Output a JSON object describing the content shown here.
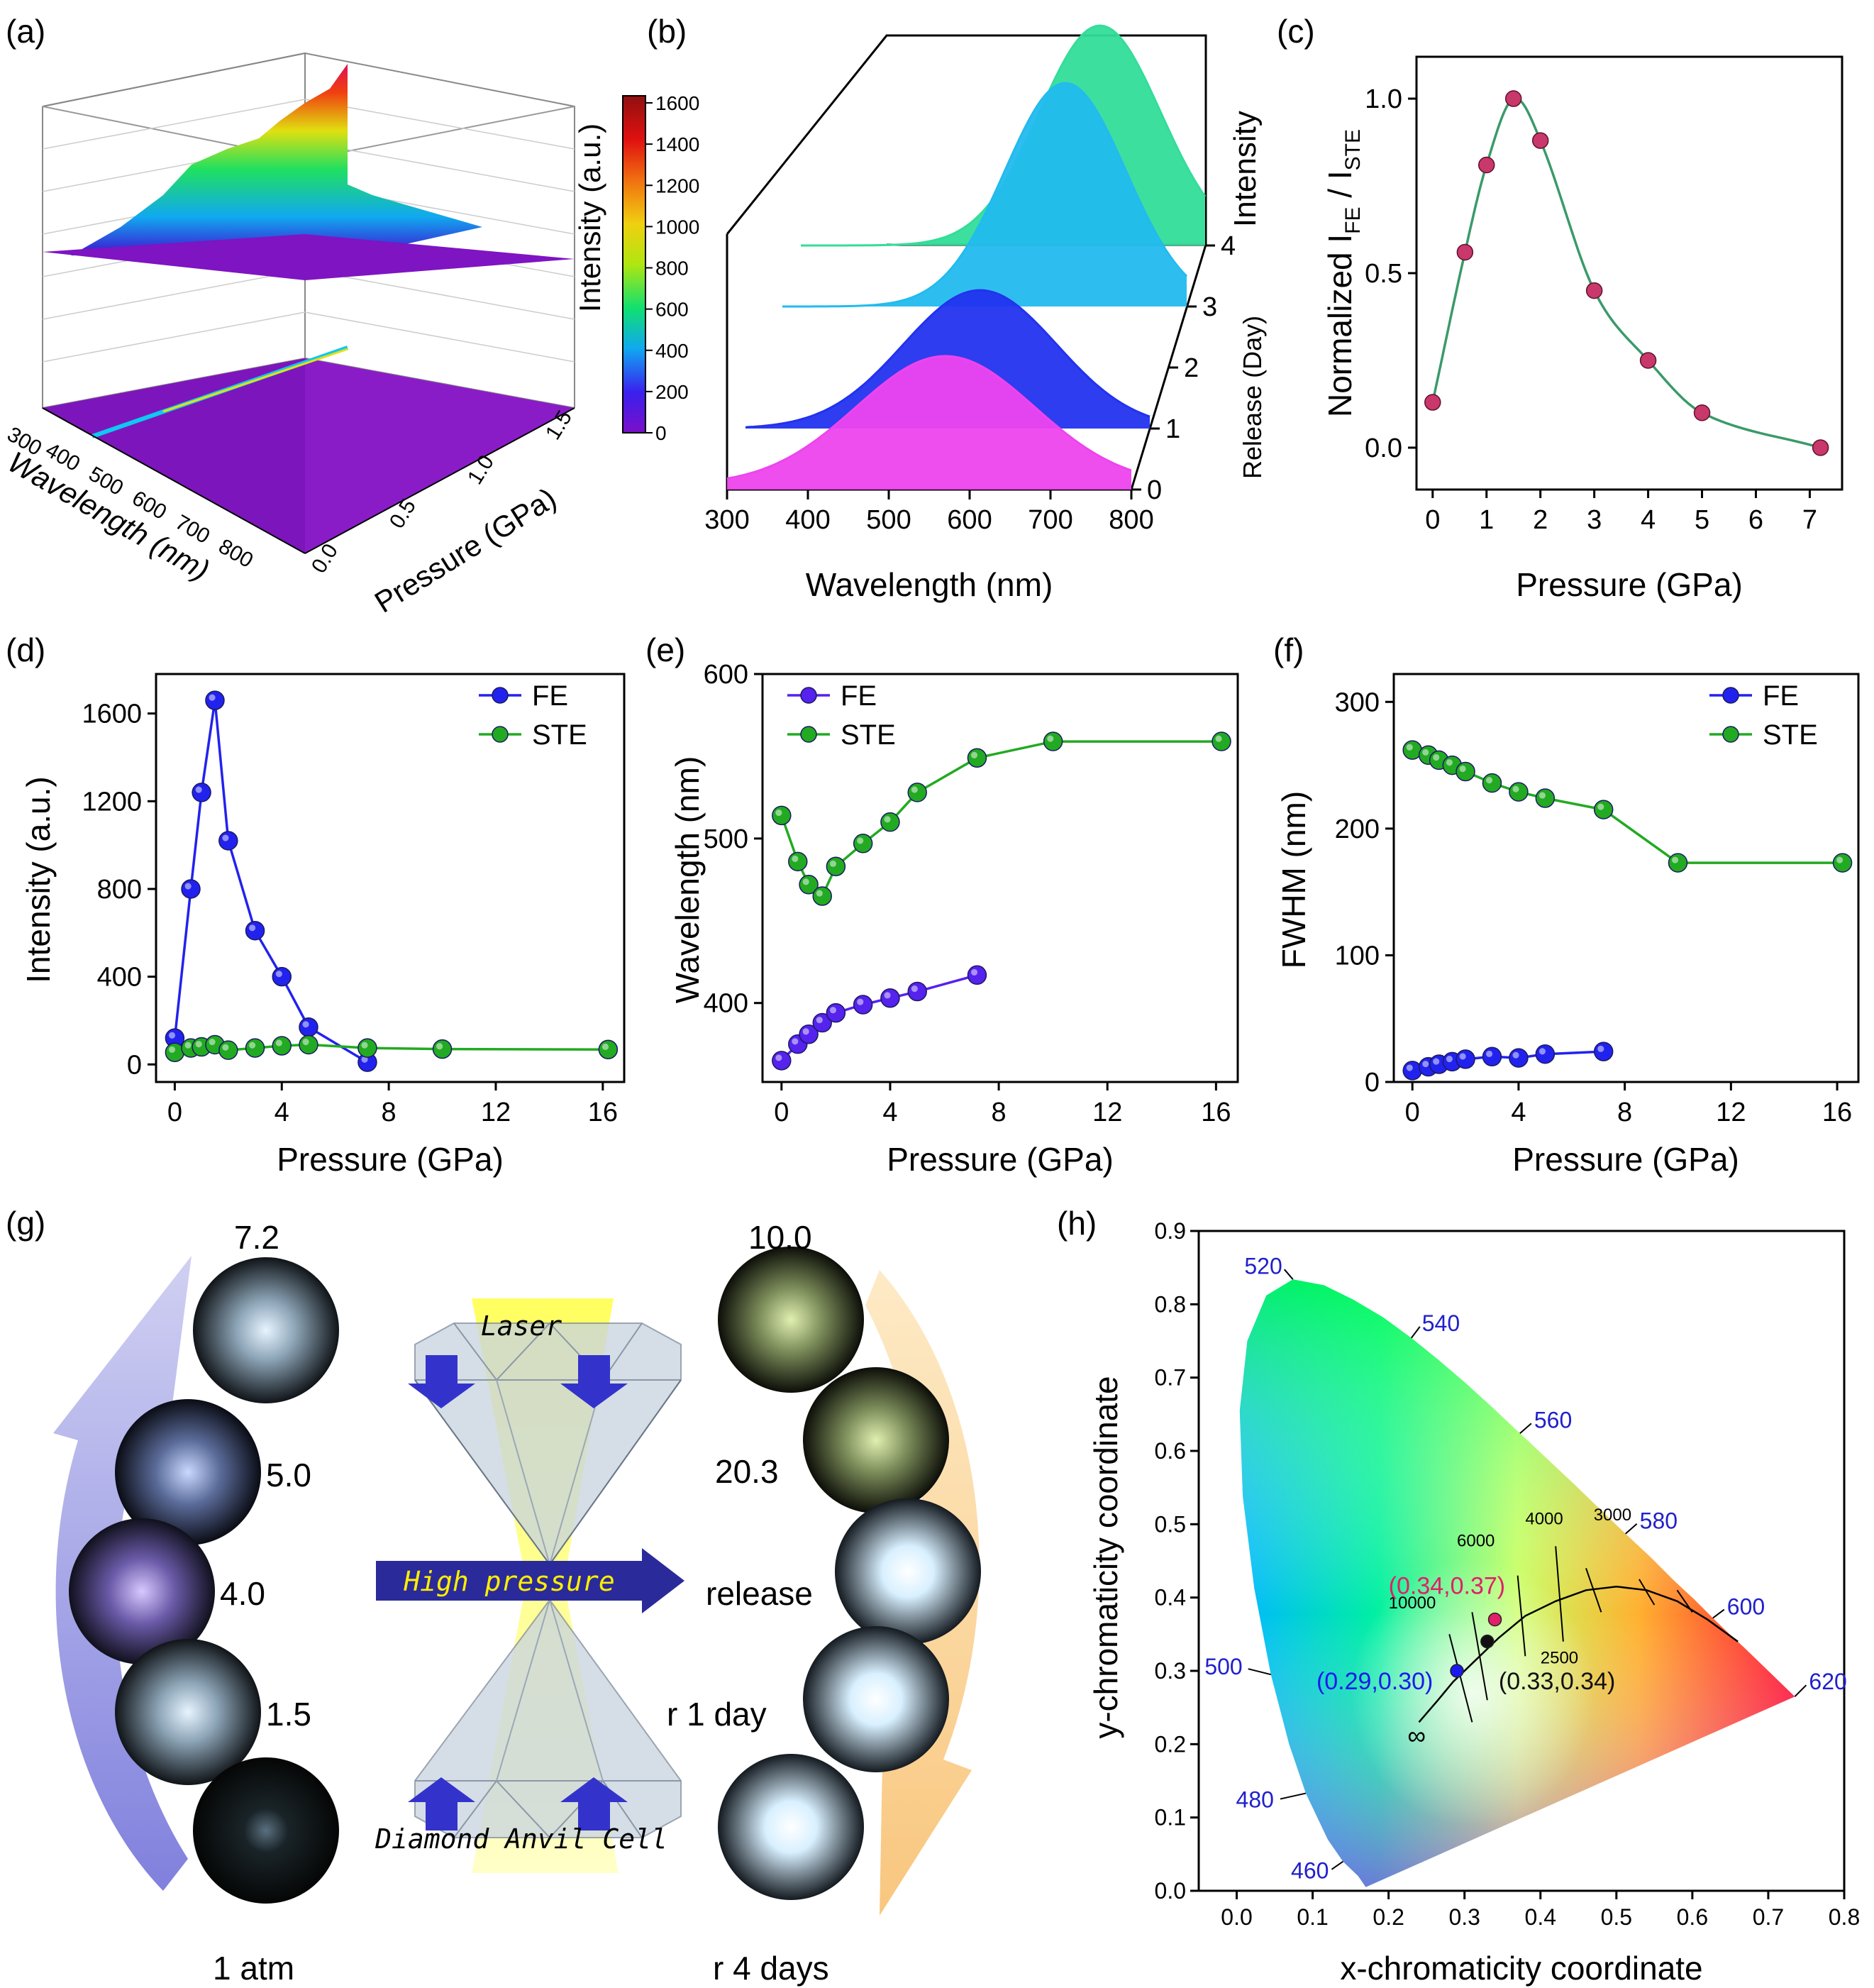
{
  "panels": {
    "a": {
      "label": "(a)",
      "type": "3d-surface",
      "x_axis": {
        "label": "Wavelength (nm)",
        "ticks": [
          "300",
          "400",
          "500",
          "600",
          "700",
          "800"
        ]
      },
      "y_axis": {
        "label": "Pressure (GPa)",
        "ticks": [
          "0.0",
          "0.5",
          "1.0",
          "1.5"
        ]
      },
      "colorbar": {
        "label": "Intensity (a.u.)",
        "ticks": [
          "0",
          "200",
          "400",
          "600",
          "800",
          "1000",
          "1200",
          "1400",
          "1600"
        ]
      }
    },
    "b": {
      "label": "(b)",
      "type": "waterfall",
      "x_axis": {
        "label": "Wavelength (nm)",
        "ticks": [
          "300",
          "400",
          "500",
          "600",
          "700",
          "800"
        ]
      },
      "depth_axis": {
        "label": "Release (Day)",
        "ticks": [
          "0",
          "1",
          "2",
          "3",
          "4"
        ]
      },
      "z_label": "Intensity",
      "curves": [
        {
          "day": 0,
          "peak_nm": 560,
          "color": "#ee44ee"
        },
        {
          "day": 1,
          "peak_nm": 580,
          "color": "#2233ee"
        },
        {
          "day": 3,
          "peak_nm": 640,
          "color": "#22bbee"
        },
        {
          "day": 4,
          "peak_nm": 660,
          "color": "#33dd99"
        }
      ]
    },
    "c": {
      "label": "(c)",
      "type": "scatter+smooth",
      "x_axis": {
        "label": "Pressure (GPa)",
        "ticks": [
          "0",
          "1",
          "2",
          "3",
          "4",
          "5",
          "6",
          "7"
        ],
        "range": [
          -0.3,
          7.6
        ]
      },
      "y_axis": {
        "label_main": "Normalized I",
        "sub1": "FE",
        "mid": " / I",
        "sub2": "STE",
        "ticks": [
          "0.0",
          "0.5",
          "1.0"
        ],
        "range": [
          -0.12,
          1.12
        ]
      }
    },
    "d": {
      "label": "(d)",
      "x_axis": {
        "label": "Pressure (GPa)",
        "ticks": [
          "0",
          "4",
          "8",
          "12",
          "16"
        ],
        "range": [
          -0.7,
          16.8
        ]
      },
      "y_axis": {
        "label": "Intensity (a.u.)",
        "ticks": [
          "0",
          "400",
          "800",
          "1200",
          "1600"
        ],
        "range": [
          -80,
          1780
        ]
      },
      "legend": [
        "FE",
        "STE"
      ]
    },
    "e": {
      "label": "(e)",
      "x_axis": {
        "label": "Pressure (GPa)",
        "ticks": [
          "0",
          "4",
          "8",
          "12",
          "16"
        ],
        "range": [
          -0.7,
          16.8
        ]
      },
      "y_axis": {
        "label": "Wavelength (nm)",
        "ticks": [
          "400",
          "500",
          "600"
        ],
        "range": [
          352,
          600
        ]
      },
      "legend": [
        "FE",
        "STE"
      ]
    },
    "f": {
      "label": "(f)",
      "x_axis": {
        "label": "Pressure (GPa)",
        "ticks": [
          "0",
          "4",
          "8",
          "12",
          "16"
        ],
        "range": [
          -0.7,
          16.8
        ]
      },
      "y_axis": {
        "label": "FWHM (nm)",
        "ticks": [
          "0",
          "100",
          "200",
          "300"
        ],
        "range": [
          0,
          322
        ]
      },
      "legend": [
        "FE",
        "STE"
      ]
    },
    "g": {
      "label": "(g)",
      "left_labels": [
        "7.2",
        "5.0",
        "4.0",
        "1.5",
        "1 atm"
      ],
      "right_labels": [
        "10.0",
        "20.3",
        "release",
        "r 1 day",
        "r 4 days"
      ],
      "diagram": {
        "top": "Laser",
        "middle": "High pressure",
        "bottom": "Diamond  Anvil  Cell"
      }
    },
    "h": {
      "label": "(h)",
      "x_axis": {
        "label": "x-chromaticity coordinate",
        "ticks": [
          "0.0",
          "0.1",
          "0.2",
          "0.3",
          "0.4",
          "0.5",
          "0.6",
          "0.7",
          "0.8"
        ]
      },
      "y_axis": {
        "label": "y-chromaticity coordinate",
        "ticks": [
          "0.0",
          "0.1",
          "0.2",
          "0.3",
          "0.4",
          "0.5",
          "0.6",
          "0.7",
          "0.8",
          "0.9"
        ]
      },
      "wavelength_labels": [
        "460",
        "480",
        "500",
        "520",
        "540",
        "560",
        "580",
        "600",
        "620"
      ],
      "cct_labels": [
        "10000",
        "6000",
        "4000",
        "3000",
        "2500"
      ],
      "infinity": "∞",
      "points": [
        {
          "label": "(0.29,0.30)",
          "x": 0.29,
          "y": 0.3,
          "color": "#1a1aee"
        },
        {
          "label": "(0.33,0.34)",
          "x": 0.33,
          "y": 0.34,
          "color": "#111111"
        },
        {
          "label": "(0.34,0.37)",
          "x": 0.34,
          "y": 0.37,
          "color": "#e0206a"
        }
      ]
    }
  },
  "chart_data": [
    {
      "panel": "c",
      "type": "scatter",
      "series": [
        {
          "x": [
            0,
            0.6,
            1.0,
            1.5,
            2.0,
            3.0,
            4.0,
            5.0,
            7.2
          ],
          "y": [
            0.13,
            0.56,
            0.81,
            1.0,
            0.88,
            0.45,
            0.25,
            0.1,
            0.0
          ]
        }
      ],
      "fit_color": "#3a9a6a",
      "marker_color": "#c8386a"
    },
    {
      "panel": "d",
      "type": "line",
      "series": [
        {
          "name": "FE",
          "color": "#2222ee",
          "x": [
            0,
            0.6,
            1.0,
            1.5,
            2.0,
            3.0,
            4.0,
            5.0,
            7.2
          ],
          "y": [
            120,
            800,
            1240,
            1660,
            1020,
            610,
            400,
            170,
            10
          ]
        },
        {
          "name": "STE",
          "color": "#22aa22",
          "x": [
            0,
            0.6,
            1.0,
            1.5,
            2.0,
            3.0,
            4.0,
            5.0,
            7.2,
            10.0,
            16.2
          ],
          "y": [
            55,
            75,
            80,
            90,
            65,
            75,
            85,
            90,
            75,
            70,
            68
          ]
        }
      ]
    },
    {
      "panel": "e",
      "type": "line",
      "series": [
        {
          "name": "FE",
          "color": "#5522ee",
          "x": [
            0,
            0.6,
            1.0,
            1.5,
            2.0,
            3.0,
            4.0,
            5.0,
            7.2
          ],
          "y": [
            365,
            375,
            381,
            388,
            394,
            399,
            403,
            407,
            417
          ]
        },
        {
          "name": "STE",
          "color": "#22aa22",
          "x": [
            0,
            0.6,
            1.0,
            1.5,
            2.0,
            3.0,
            4.0,
            5.0,
            7.2,
            10.0,
            16.2
          ],
          "y": [
            514,
            486,
            472,
            465,
            483,
            497,
            510,
            528,
            549,
            559,
            559
          ]
        }
      ]
    },
    {
      "panel": "f",
      "type": "line",
      "series": [
        {
          "name": "FE",
          "color": "#2222ee",
          "x": [
            0,
            0.6,
            1.0,
            1.5,
            2.0,
            3.0,
            4.0,
            5.0,
            7.2
          ],
          "y": [
            9,
            12,
            14,
            16,
            18,
            20,
            19,
            22,
            24
          ]
        },
        {
          "name": "STE",
          "color": "#22aa22",
          "x": [
            0,
            0.6,
            1.0,
            1.5,
            2.0,
            3.0,
            4.0,
            5.0,
            7.2,
            10.0,
            16.2
          ],
          "y": [
            262,
            258,
            254,
            250,
            245,
            236,
            229,
            224,
            215,
            173,
            173
          ]
        }
      ]
    }
  ]
}
